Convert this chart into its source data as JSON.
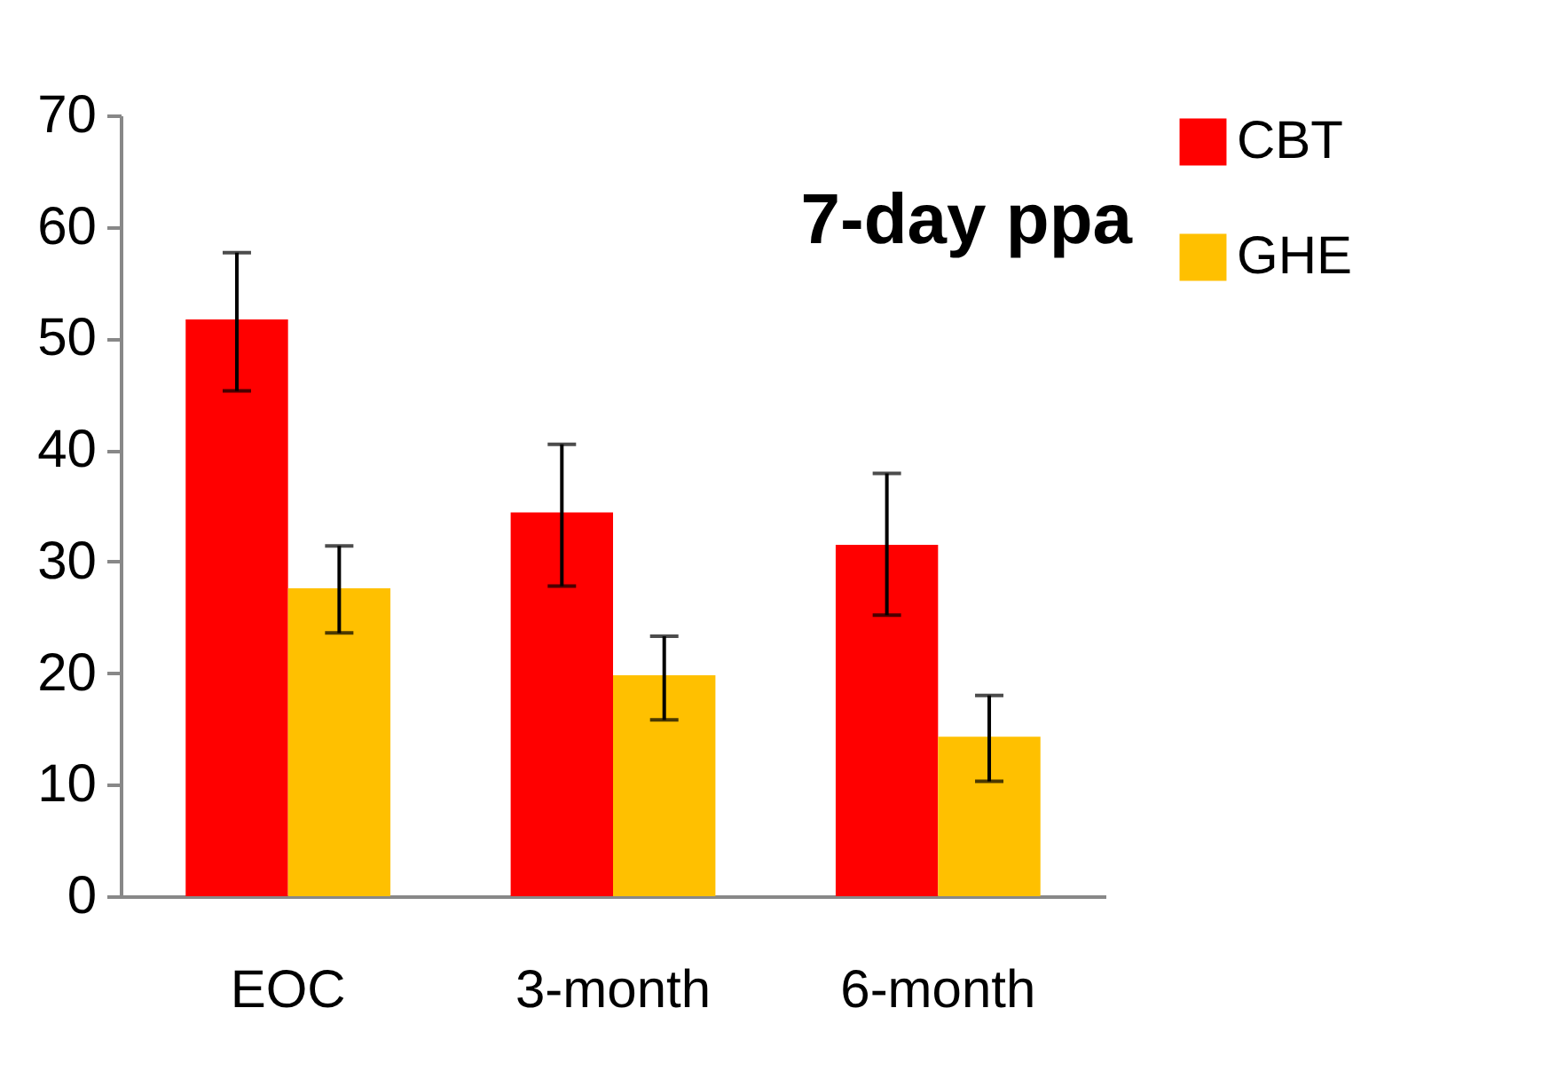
{
  "chart_data": {
    "type": "bar",
    "title": "7-day ppa",
    "categories": [
      "EOC",
      "3-month",
      "6-month"
    ],
    "series": [
      {
        "name": "CBT",
        "color": "#ff0000",
        "values": [
          51.7,
          34.4,
          31.5
        ],
        "errors": [
          [
            45.3,
            57.7
          ],
          [
            27.8,
            40.5
          ],
          [
            25.2,
            37.9
          ]
        ]
      },
      {
        "name": "GHE",
        "color": "#ffc000",
        "values": [
          27.6,
          19.8,
          14.3
        ],
        "errors": [
          [
            23.6,
            31.4
          ],
          [
            15.8,
            23.3
          ],
          [
            10.3,
            18.0
          ]
        ]
      }
    ],
    "ylim": [
      0,
      70
    ],
    "yticks": [
      0,
      10,
      20,
      30,
      40,
      50,
      60,
      70
    ],
    "grid": false,
    "legend": "right"
  }
}
